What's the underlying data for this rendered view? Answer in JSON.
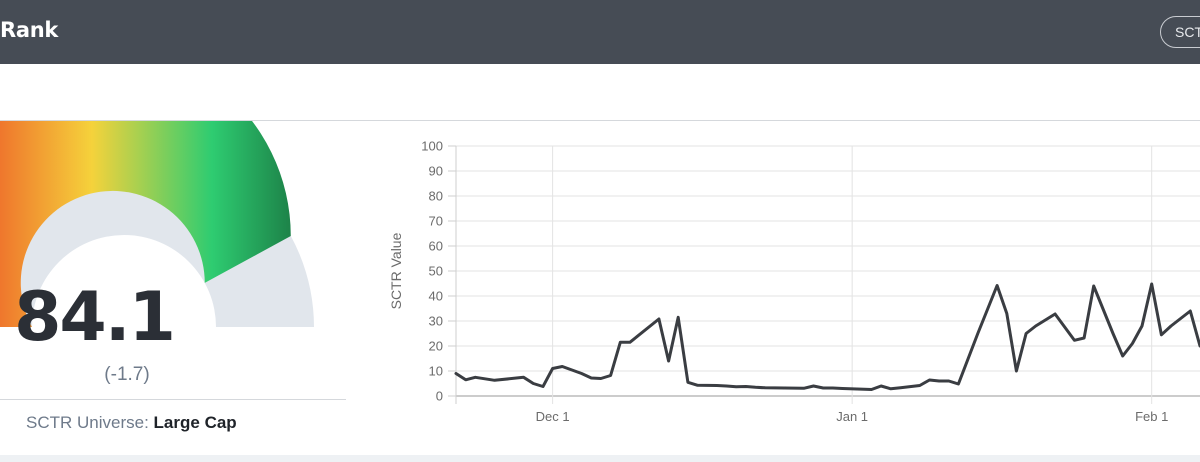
{
  "header": {
    "title": "Rank",
    "pill_label": "SCTR"
  },
  "gauge": {
    "value": "84.1",
    "value_number": 84.1,
    "change": "(-1.7)",
    "universe_label": "SCTR Universe:",
    "universe_value": "Large Cap",
    "colors": {
      "low": "#e8131d",
      "mid": "#f5d23b",
      "high": "#2ecc71",
      "top": "#1b7a44",
      "track": "#e1e6ec"
    }
  },
  "chart_data": {
    "type": "line",
    "ylabel": "SCTR Value",
    "ylim": [
      0,
      100
    ],
    "y_ticks": [
      "0",
      "10",
      "20",
      "30",
      "40",
      "50",
      "60",
      "70",
      "80",
      "90",
      "100"
    ],
    "x_ticks": [
      {
        "label": "Dec 1",
        "t": 10
      },
      {
        "label": "Jan 1",
        "t": 41
      },
      {
        "label": "Feb 1",
        "t": 72
      }
    ],
    "grid": true,
    "line_color": "#3a3d42",
    "series": [
      {
        "values": [
          [
            0,
            9
          ],
          [
            1,
            6.5
          ],
          [
            2,
            7.5
          ],
          [
            4,
            6.3
          ],
          [
            7,
            7.5
          ],
          [
            8,
            5
          ],
          [
            9,
            3.8
          ],
          [
            10,
            11
          ],
          [
            11,
            11.8
          ],
          [
            13,
            9
          ],
          [
            14,
            7.2
          ],
          [
            15,
            7
          ],
          [
            16,
            8.2
          ],
          [
            17,
            21.5
          ],
          [
            18,
            21.5
          ],
          [
            21,
            30.8
          ],
          [
            22,
            14
          ],
          [
            23,
            31.5
          ],
          [
            24,
            5.5
          ],
          [
            25,
            4.3
          ],
          [
            27,
            4.2
          ],
          [
            28,
            4
          ],
          [
            29,
            3.7
          ],
          [
            30,
            3.8
          ],
          [
            31,
            3.5
          ],
          [
            32,
            3.3
          ],
          [
            36,
            3.1
          ],
          [
            37,
            4
          ],
          [
            38,
            3.2
          ],
          [
            39,
            3.2
          ],
          [
            40,
            3
          ],
          [
            43,
            2.6
          ],
          [
            44,
            4
          ],
          [
            45,
            2.9
          ],
          [
            46,
            3.3
          ],
          [
            48,
            4.2
          ],
          [
            49,
            6.4
          ],
          [
            50,
            6
          ],
          [
            51,
            6
          ],
          [
            52,
            4.8
          ],
          [
            54,
            25
          ],
          [
            56,
            44.2
          ],
          [
            57,
            33
          ],
          [
            58,
            10
          ],
          [
            59,
            25
          ],
          [
            60,
            28
          ],
          [
            62,
            32.8
          ],
          [
            64,
            22.3
          ],
          [
            65,
            23.2
          ],
          [
            66,
            44
          ],
          [
            68,
            25
          ],
          [
            69,
            16
          ],
          [
            70,
            21
          ],
          [
            71,
            28
          ],
          [
            72,
            44.8
          ],
          [
            73,
            24.5
          ],
          [
            74,
            28
          ],
          [
            76,
            34
          ],
          [
            77,
            20
          ]
        ]
      }
    ]
  }
}
